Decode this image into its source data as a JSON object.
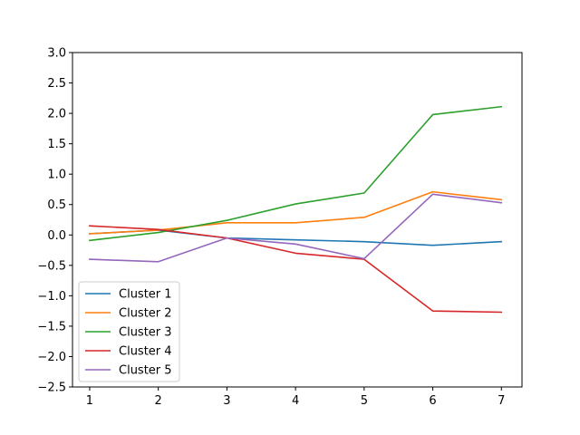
{
  "chart_data": {
    "type": "line",
    "x": [
      1,
      2,
      3,
      4,
      5,
      6,
      7
    ],
    "xlim": [
      0.75,
      7.3
    ],
    "ylim": [
      -2.5,
      3.0
    ],
    "xticks": [
      1,
      2,
      3,
      4,
      5,
      6,
      7
    ],
    "yticks": [
      -2.5,
      -2.0,
      -1.5,
      -1.0,
      -0.5,
      0.0,
      0.5,
      1.0,
      1.5,
      2.0,
      2.5,
      3.0
    ],
    "ytick_labels": [
      "−2.5",
      "−2.0",
      "−1.5",
      "−1.0",
      "−0.5",
      "0.0",
      "0.5",
      "1.0",
      "1.5",
      "2.0",
      "2.5",
      "3.0"
    ],
    "grid": false,
    "legend_position": "lower-left",
    "series": [
      {
        "name": "Cluster 1",
        "color": "#1f77b4",
        "values": [
          0.02,
          0.08,
          -0.05,
          -0.08,
          -0.11,
          -0.17,
          -0.11
        ]
      },
      {
        "name": "Cluster 2",
        "color": "#ff7f0e",
        "values": [
          0.02,
          0.08,
          0.2,
          0.2,
          0.29,
          0.71,
          0.58
        ]
      },
      {
        "name": "Cluster 3",
        "color": "#2ca02c",
        "values": [
          -0.09,
          0.04,
          0.24,
          0.51,
          0.69,
          1.98,
          2.11
        ]
      },
      {
        "name": "Cluster 4",
        "color": "#d62728",
        "values": [
          0.15,
          0.09,
          -0.05,
          -0.3,
          -0.4,
          -1.25,
          -1.27
        ]
      },
      {
        "name": "Cluster 5",
        "color": "#9467bd",
        "values": [
          -0.4,
          -0.44,
          -0.05,
          -0.15,
          -0.39,
          0.67,
          0.53
        ]
      }
    ]
  }
}
